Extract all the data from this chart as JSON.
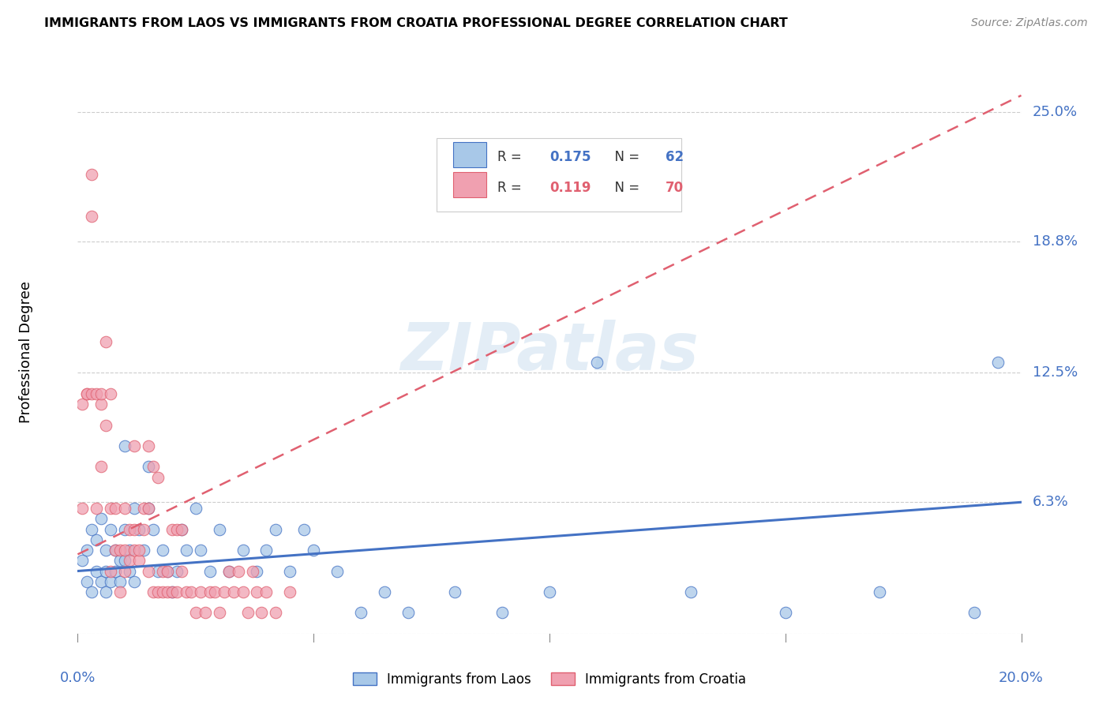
{
  "title": "IMMIGRANTS FROM LAOS VS IMMIGRANTS FROM CROATIA PROFESSIONAL DEGREE CORRELATION CHART",
  "source": "Source: ZipAtlas.com",
  "ylabel": "Professional Degree",
  "ytick_labels": [
    "25.0%",
    "18.8%",
    "12.5%",
    "6.3%"
  ],
  "ytick_values": [
    0.25,
    0.188,
    0.125,
    0.063
  ],
  "xlim": [
    0.0,
    0.2
  ],
  "ylim": [
    0.0,
    0.27
  ],
  "color_laos": "#A8C8E8",
  "color_croatia": "#F0A0B0",
  "trendline_laos_color": "#4472C4",
  "trendline_croatia_color": "#E06070",
  "watermark": "ZIPatlas",
  "laos_R": 0.175,
  "laos_N": 62,
  "croatia_R": 0.119,
  "croatia_N": 70,
  "laos_trend_x": [
    0.0,
    0.2
  ],
  "laos_trend_y": [
    0.03,
    0.063
  ],
  "croatia_trend_x": [
    0.0,
    0.2
  ],
  "croatia_trend_y": [
    0.038,
    0.258
  ],
  "laos_x": [
    0.001,
    0.002,
    0.002,
    0.003,
    0.003,
    0.004,
    0.004,
    0.005,
    0.005,
    0.006,
    0.006,
    0.006,
    0.007,
    0.007,
    0.008,
    0.008,
    0.009,
    0.009,
    0.01,
    0.01,
    0.01,
    0.011,
    0.011,
    0.012,
    0.012,
    0.013,
    0.014,
    0.015,
    0.015,
    0.016,
    0.017,
    0.018,
    0.019,
    0.02,
    0.021,
    0.022,
    0.023,
    0.025,
    0.026,
    0.028,
    0.03,
    0.032,
    0.035,
    0.038,
    0.04,
    0.042,
    0.045,
    0.048,
    0.05,
    0.055,
    0.06,
    0.065,
    0.07,
    0.08,
    0.09,
    0.1,
    0.11,
    0.13,
    0.15,
    0.17,
    0.19,
    0.195
  ],
  "laos_y": [
    0.035,
    0.025,
    0.04,
    0.02,
    0.05,
    0.03,
    0.045,
    0.025,
    0.055,
    0.03,
    0.02,
    0.04,
    0.025,
    0.05,
    0.03,
    0.04,
    0.035,
    0.025,
    0.09,
    0.035,
    0.05,
    0.04,
    0.03,
    0.06,
    0.025,
    0.05,
    0.04,
    0.06,
    0.08,
    0.05,
    0.03,
    0.04,
    0.03,
    0.02,
    0.03,
    0.05,
    0.04,
    0.06,
    0.04,
    0.03,
    0.05,
    0.03,
    0.04,
    0.03,
    0.04,
    0.05,
    0.03,
    0.05,
    0.04,
    0.03,
    0.01,
    0.02,
    0.01,
    0.02,
    0.01,
    0.02,
    0.13,
    0.02,
    0.01,
    0.02,
    0.01,
    0.13
  ],
  "croatia_x": [
    0.001,
    0.001,
    0.002,
    0.002,
    0.003,
    0.003,
    0.003,
    0.004,
    0.004,
    0.005,
    0.005,
    0.005,
    0.006,
    0.006,
    0.007,
    0.007,
    0.007,
    0.008,
    0.008,
    0.009,
    0.009,
    0.01,
    0.01,
    0.01,
    0.011,
    0.011,
    0.012,
    0.012,
    0.012,
    0.013,
    0.013,
    0.014,
    0.014,
    0.015,
    0.015,
    0.015,
    0.016,
    0.016,
    0.017,
    0.017,
    0.018,
    0.018,
    0.019,
    0.019,
    0.02,
    0.02,
    0.021,
    0.021,
    0.022,
    0.022,
    0.023,
    0.024,
    0.025,
    0.026,
    0.027,
    0.028,
    0.029,
    0.03,
    0.031,
    0.032,
    0.033,
    0.034,
    0.035,
    0.036,
    0.037,
    0.038,
    0.039,
    0.04,
    0.042,
    0.045
  ],
  "croatia_y": [
    0.06,
    0.11,
    0.115,
    0.115,
    0.22,
    0.2,
    0.115,
    0.115,
    0.06,
    0.11,
    0.08,
    0.115,
    0.14,
    0.1,
    0.03,
    0.115,
    0.06,
    0.06,
    0.04,
    0.04,
    0.02,
    0.04,
    0.03,
    0.06,
    0.05,
    0.035,
    0.05,
    0.04,
    0.09,
    0.035,
    0.04,
    0.05,
    0.06,
    0.09,
    0.03,
    0.06,
    0.02,
    0.08,
    0.02,
    0.075,
    0.02,
    0.03,
    0.03,
    0.02,
    0.02,
    0.05,
    0.02,
    0.05,
    0.03,
    0.05,
    0.02,
    0.02,
    0.01,
    0.02,
    0.01,
    0.02,
    0.02,
    0.01,
    0.02,
    0.03,
    0.02,
    0.03,
    0.02,
    0.01,
    0.03,
    0.02,
    0.01,
    0.02,
    0.01,
    0.02
  ]
}
